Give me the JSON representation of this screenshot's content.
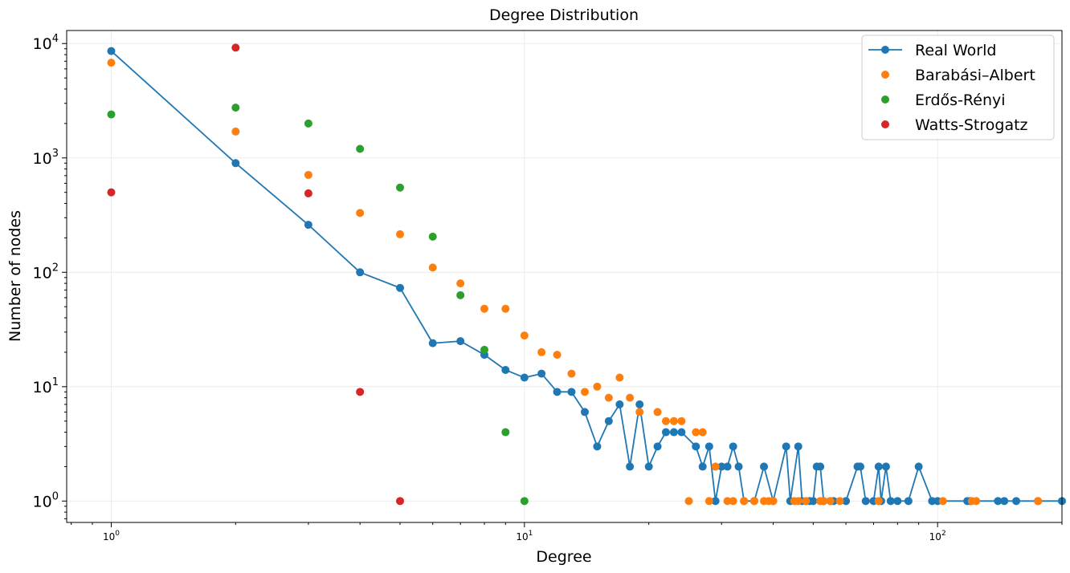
{
  "chart_data": {
    "type": "scatter",
    "title": "Degree Distribution",
    "xlabel": "Degree",
    "ylabel": "Number of nodes",
    "xscale": "log",
    "yscale": "log",
    "xlim": [
      0.78,
      200
    ],
    "ylim": [
      0.65,
      13000
    ],
    "grid": true,
    "legend_position": "top-right",
    "x_ticks": [
      {
        "value": 1,
        "base": "10",
        "exp": "0"
      },
      {
        "value": 10,
        "base": "10",
        "exp": "1"
      },
      {
        "value": 100,
        "base": "10",
        "exp": "2"
      }
    ],
    "y_ticks": [
      {
        "value": 1,
        "base": "10",
        "exp": "0"
      },
      {
        "value": 10,
        "base": "10",
        "exp": "1"
      },
      {
        "value": 100,
        "base": "10",
        "exp": "2"
      },
      {
        "value": 1000,
        "base": "10",
        "exp": "3"
      },
      {
        "value": 10000,
        "base": "10",
        "exp": "4"
      }
    ],
    "series": [
      {
        "name": "Real World",
        "color": "#1f77b4",
        "style": "line-marker",
        "x": [
          1,
          2,
          3,
          4,
          5,
          6,
          7,
          8,
          9,
          10,
          11,
          12,
          13,
          14,
          15,
          16,
          17,
          18,
          19,
          20,
          21,
          22,
          23,
          24,
          26,
          27,
          28,
          29,
          30,
          31,
          32,
          33,
          34,
          36,
          38,
          40,
          43,
          44,
          46,
          47,
          49,
          50,
          51,
          52,
          53,
          55,
          56,
          60,
          64,
          65,
          67,
          70,
          72,
          73,
          75,
          77,
          80,
          85,
          90,
          97,
          100,
          118,
          120,
          140,
          145,
          155,
          175,
          200
        ],
        "y": [
          8600,
          900,
          260,
          100,
          73,
          24,
          25,
          19,
          14,
          12,
          13,
          9,
          9,
          6,
          3,
          5,
          7,
          2,
          7,
          2,
          3,
          4,
          4,
          4,
          3,
          2,
          3,
          1,
          2,
          2,
          3,
          2,
          1,
          1,
          2,
          1,
          3,
          1,
          3,
          1,
          1,
          1,
          2,
          2,
          1,
          1,
          1,
          1,
          2,
          2,
          1,
          1,
          2,
          1,
          2,
          1,
          1,
          1,
          2,
          1,
          1,
          1,
          1,
          1,
          1,
          1,
          1,
          1
        ]
      },
      {
        "name": "Barabási–Albert",
        "color": "#ff7f0e",
        "style": "marker",
        "x": [
          1,
          2,
          3,
          4,
          5,
          6,
          7,
          8,
          9,
          10,
          11,
          12,
          13,
          14,
          15,
          16,
          17,
          18,
          19,
          21,
          22,
          23,
          24,
          26,
          27,
          25,
          28,
          29,
          31,
          32,
          34,
          36,
          38,
          39,
          40,
          45,
          46,
          48,
          52,
          53,
          55,
          58,
          72,
          103,
          121,
          124,
          175
        ],
        "y": [
          6800,
          1700,
          710,
          330,
          215,
          110,
          80,
          48,
          48,
          28,
          20,
          19,
          13,
          9,
          10,
          8,
          12,
          8,
          6,
          6,
          5,
          5,
          5,
          4,
          4,
          1,
          1,
          2,
          1,
          1,
          1,
          1,
          1,
          1,
          1,
          1,
          1,
          1,
          1,
          1,
          1,
          1,
          1,
          1,
          1,
          1,
          1
        ]
      },
      {
        "name": "Erdős-Rényi",
        "color": "#2ca02c",
        "style": "marker",
        "x": [
          1,
          2,
          3,
          4,
          5,
          6,
          7,
          8,
          9,
          10
        ],
        "y": [
          2400,
          2750,
          2000,
          1200,
          550,
          205,
          63,
          21,
          4,
          1
        ]
      },
      {
        "name": "Watts-Strogatz",
        "color": "#d62728",
        "style": "marker",
        "x": [
          1,
          2,
          3,
          4,
          5
        ],
        "y": [
          500,
          9200,
          490,
          9,
          1
        ]
      }
    ]
  }
}
